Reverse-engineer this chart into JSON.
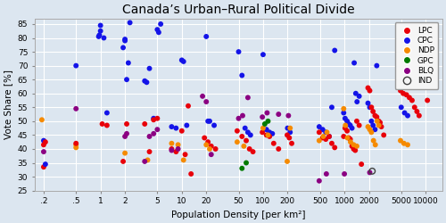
{
  "title": "Canada’s Urban–Rural Political Divide",
  "xlabel": "Population Density [per km²]",
  "ylabel": "Vote Share [%]",
  "ylim": [
    25,
    87
  ],
  "yticks": [
    25,
    30,
    35,
    40,
    45,
    50,
    55,
    60,
    65,
    70,
    75,
    80,
    85
  ],
  "xtick_labels": [
    ".2",
    ".5",
    "1",
    "2",
    "5",
    "10",
    "20",
    "50",
    "100",
    "200",
    "500",
    "1000",
    "2000",
    "5000",
    "10000"
  ],
  "xtick_values": [
    0.2,
    0.5,
    1,
    2,
    5,
    10,
    20,
    50,
    100,
    200,
    500,
    1000,
    2000,
    5000,
    10000
  ],
  "background_color": "#dce6f0",
  "plot_bg_color": "#dce6f0",
  "grid_color": "#ffffff",
  "parties": {
    "LPC": {
      "color": "#e8000a",
      "filled": true
    },
    "CPC": {
      "color": "#1414e8",
      "filled": true
    },
    "NDP": {
      "color": "#f58a00",
      "filled": true
    },
    "GPC": {
      "color": "#007a00",
      "filled": true
    },
    "BLQ": {
      "color": "#8b0082",
      "filled": true
    },
    "IND": {
      "color": "#404040",
      "filled": false
    }
  },
  "party_order": [
    "LPC",
    "CPC",
    "NDP",
    "GPC",
    "BLQ",
    "IND"
  ],
  "dot_size": 18,
  "data": [
    {
      "party": "NDP",
      "density": 0.19,
      "vote": 50.5
    },
    {
      "party": "CPC",
      "density": 0.2,
      "vote": 43.0
    },
    {
      "party": "LPC",
      "density": 0.2,
      "vote": 33.5
    },
    {
      "party": "LPC",
      "density": 0.2,
      "vote": 41.5
    },
    {
      "party": "BLQ",
      "density": 0.2,
      "vote": 39.0
    },
    {
      "party": "LPC",
      "density": 0.21,
      "vote": 42.5
    },
    {
      "party": "CPC",
      "density": 0.21,
      "vote": 34.5
    },
    {
      "party": "CPC",
      "density": 0.5,
      "vote": 70.0
    },
    {
      "party": "NDP",
      "density": 0.5,
      "vote": 40.5
    },
    {
      "party": "NDP",
      "density": 0.5,
      "vote": 41.5
    },
    {
      "party": "LPC",
      "density": 0.5,
      "vote": 42.0
    },
    {
      "party": "BLQ",
      "density": 0.5,
      "vote": 54.5
    },
    {
      "party": "CPC",
      "density": 0.95,
      "vote": 80.5
    },
    {
      "party": "CPC",
      "density": 0.97,
      "vote": 81.0
    },
    {
      "party": "CPC",
      "density": 1.0,
      "vote": 82.5
    },
    {
      "party": "CPC",
      "density": 1.0,
      "vote": 84.5
    },
    {
      "party": "CPC",
      "density": 1.1,
      "vote": 80.0
    },
    {
      "party": "CPC",
      "density": 1.2,
      "vote": 53.0
    },
    {
      "party": "LPC",
      "density": 1.05,
      "vote": 49.0
    },
    {
      "party": "LPC",
      "density": 1.2,
      "vote": 48.5
    },
    {
      "party": "CPC",
      "density": 1.9,
      "vote": 76.5
    },
    {
      "party": "CPC",
      "density": 2.0,
      "vote": 79.0
    },
    {
      "party": "CPC",
      "density": 2.0,
      "vote": 79.5
    },
    {
      "party": "CPC",
      "density": 2.1,
      "vote": 65.0
    },
    {
      "party": "CPC",
      "density": 2.2,
      "vote": 71.0
    },
    {
      "party": "CPC",
      "density": 2.3,
      "vote": 85.5
    },
    {
      "party": "LPC",
      "density": 1.9,
      "vote": 35.5
    },
    {
      "party": "LPC",
      "density": 2.1,
      "vote": 49.0
    },
    {
      "party": "NDP",
      "density": 2.0,
      "vote": 38.5
    },
    {
      "party": "BLQ",
      "density": 2.0,
      "vote": 44.5
    },
    {
      "party": "BLQ",
      "density": 2.1,
      "vote": 45.5
    },
    {
      "party": "CPC",
      "density": 3.5,
      "vote": 64.5
    },
    {
      "party": "CPC",
      "density": 3.7,
      "vote": 64.0
    },
    {
      "party": "CPC",
      "density": 4.0,
      "vote": 69.0
    },
    {
      "party": "CPC",
      "density": 4.5,
      "vote": 51.0
    },
    {
      "party": "CPC",
      "density": 5.0,
      "vote": 83.0
    },
    {
      "party": "CPC",
      "density": 5.2,
      "vote": 82.0
    },
    {
      "party": "CPC",
      "density": 5.5,
      "vote": 85.0
    },
    {
      "party": "LPC",
      "density": 3.5,
      "vote": 49.0
    },
    {
      "party": "LPC",
      "density": 4.0,
      "vote": 39.0
    },
    {
      "party": "LPC",
      "density": 4.5,
      "vote": 50.5
    },
    {
      "party": "LPC",
      "density": 5.0,
      "vote": 51.0
    },
    {
      "party": "NDP",
      "density": 3.8,
      "vote": 36.0
    },
    {
      "party": "BLQ",
      "density": 3.5,
      "vote": 35.5
    },
    {
      "party": "BLQ",
      "density": 4.0,
      "vote": 44.5
    },
    {
      "party": "BLQ",
      "density": 4.5,
      "vote": 45.5
    },
    {
      "party": "BLQ",
      "density": 5.0,
      "vote": 47.0
    },
    {
      "party": "CPC",
      "density": 7.5,
      "vote": 48.0
    },
    {
      "party": "CPC",
      "density": 8.5,
      "vote": 47.5
    },
    {
      "party": "CPC",
      "density": 10.0,
      "vote": 72.0
    },
    {
      "party": "CPC",
      "density": 10.5,
      "vote": 71.5
    },
    {
      "party": "CPC",
      "density": 11.5,
      "vote": 48.5
    },
    {
      "party": "LPC",
      "density": 7.5,
      "vote": 40.0
    },
    {
      "party": "LPC",
      "density": 8.5,
      "vote": 39.0
    },
    {
      "party": "LPC",
      "density": 10.0,
      "vote": 46.5
    },
    {
      "party": "LPC",
      "density": 11.0,
      "vote": 38.0
    },
    {
      "party": "LPC",
      "density": 12.0,
      "vote": 55.5
    },
    {
      "party": "LPC",
      "density": 13.0,
      "vote": 31.0
    },
    {
      "party": "NDP",
      "density": 7.5,
      "vote": 42.0
    },
    {
      "party": "NDP",
      "density": 9.0,
      "vote": 41.5
    },
    {
      "party": "NDP",
      "density": 10.5,
      "vote": 36.0
    },
    {
      "party": "BLQ",
      "density": 7.5,
      "vote": 39.5
    },
    {
      "party": "BLQ",
      "density": 9.0,
      "vote": 40.0
    },
    {
      "party": "CPC",
      "density": 20.0,
      "vote": 80.5
    },
    {
      "party": "CPC",
      "density": 21.0,
      "vote": 50.0
    },
    {
      "party": "CPC",
      "density": 22.0,
      "vote": 50.0
    },
    {
      "party": "CPC",
      "density": 25.0,
      "vote": 48.5
    },
    {
      "party": "LPC",
      "density": 19.0,
      "vote": 44.0
    },
    {
      "party": "LPC",
      "density": 21.0,
      "vote": 42.5
    },
    {
      "party": "LPC",
      "density": 23.0,
      "vote": 41.0
    },
    {
      "party": "LPC",
      "density": 26.0,
      "vote": 40.0
    },
    {
      "party": "NDP",
      "density": 20.0,
      "vote": 41.5
    },
    {
      "party": "NDP",
      "density": 22.0,
      "vote": 40.0
    },
    {
      "party": "BLQ",
      "density": 18.0,
      "vote": 59.0
    },
    {
      "party": "BLQ",
      "density": 20.0,
      "vote": 57.0
    },
    {
      "party": "BLQ",
      "density": 23.0,
      "vote": 38.0
    },
    {
      "party": "CPC",
      "density": 50.0,
      "vote": 75.0
    },
    {
      "party": "CPC",
      "density": 55.0,
      "vote": 66.5
    },
    {
      "party": "CPC",
      "density": 60.0,
      "vote": 47.5
    },
    {
      "party": "CPC",
      "density": 65.0,
      "vote": 46.0
    },
    {
      "party": "CPC",
      "density": 70.0,
      "vote": 45.0
    },
    {
      "party": "LPC",
      "density": 48.0,
      "vote": 46.5
    },
    {
      "party": "LPC",
      "density": 55.0,
      "vote": 44.5
    },
    {
      "party": "LPC",
      "density": 62.0,
      "vote": 43.0
    },
    {
      "party": "LPC",
      "density": 68.0,
      "vote": 40.0
    },
    {
      "party": "LPC",
      "density": 75.0,
      "vote": 39.0
    },
    {
      "party": "NDP",
      "density": 48.0,
      "vote": 42.5
    },
    {
      "party": "NDP",
      "density": 58.0,
      "vote": 41.0
    },
    {
      "party": "GPC",
      "density": 55.0,
      "vote": 33.0
    },
    {
      "party": "GPC",
      "density": 62.0,
      "vote": 35.0
    },
    {
      "party": "BLQ",
      "density": 50.0,
      "vote": 51.0
    },
    {
      "party": "BLQ",
      "density": 56.0,
      "vote": 52.0
    },
    {
      "party": "BLQ",
      "density": 65.0,
      "vote": 58.5
    },
    {
      "party": "CPC",
      "density": 100.0,
      "vote": 74.0
    },
    {
      "party": "CPC",
      "density": 110.0,
      "vote": 47.0
    },
    {
      "party": "CPC",
      "density": 120.0,
      "vote": 46.0
    },
    {
      "party": "CPC",
      "density": 130.0,
      "vote": 45.5
    },
    {
      "party": "LPC",
      "density": 98.0,
      "vote": 46.0
    },
    {
      "party": "LPC",
      "density": 110.0,
      "vote": 45.0
    },
    {
      "party": "LPC",
      "density": 120.0,
      "vote": 44.5
    },
    {
      "party": "LPC",
      "density": 135.0,
      "vote": 42.0
    },
    {
      "party": "LPC",
      "density": 155.0,
      "vote": 40.0
    },
    {
      "party": "NDP",
      "density": 100.0,
      "vote": 47.5
    },
    {
      "party": "NDP",
      "density": 115.0,
      "vote": 45.0
    },
    {
      "party": "GPC",
      "density": 105.0,
      "vote": 49.0
    },
    {
      "party": "GPC",
      "density": 115.0,
      "vote": 50.0
    },
    {
      "party": "BLQ",
      "density": 98.0,
      "vote": 51.5
    },
    {
      "party": "BLQ",
      "density": 112.0,
      "vote": 53.0
    },
    {
      "party": "BLQ",
      "density": 155.0,
      "vote": 52.5
    },
    {
      "party": "CPC",
      "density": 200.0,
      "vote": 47.5
    },
    {
      "party": "CPC",
      "density": 215.0,
      "vote": 46.0
    },
    {
      "party": "LPC",
      "density": 198.0,
      "vote": 45.0
    },
    {
      "party": "LPC",
      "density": 210.0,
      "vote": 44.0
    },
    {
      "party": "LPC",
      "density": 225.0,
      "vote": 42.0
    },
    {
      "party": "NDP",
      "density": 198.0,
      "vote": 35.5
    },
    {
      "party": "NDP",
      "density": 215.0,
      "vote": 47.5
    },
    {
      "party": "BLQ",
      "density": 205.0,
      "vote": 52.0
    },
    {
      "party": "CPC",
      "density": 490.0,
      "vote": 48.0
    },
    {
      "party": "CPC",
      "density": 540.0,
      "vote": 47.0
    },
    {
      "party": "CPC",
      "density": 590.0,
      "vote": 46.0
    },
    {
      "party": "CPC",
      "density": 650.0,
      "vote": 44.5
    },
    {
      "party": "CPC",
      "density": 700.0,
      "vote": 55.0
    },
    {
      "party": "CPC",
      "density": 760.0,
      "vote": 75.5
    },
    {
      "party": "LPC",
      "density": 490.0,
      "vote": 46.0
    },
    {
      "party": "LPC",
      "density": 540.0,
      "vote": 44.0
    },
    {
      "party": "LPC",
      "density": 590.0,
      "vote": 43.5
    },
    {
      "party": "LPC",
      "density": 650.0,
      "vote": 44.5
    },
    {
      "party": "LPC",
      "density": 700.0,
      "vote": 42.0
    },
    {
      "party": "LPC",
      "density": 760.0,
      "vote": 40.5
    },
    {
      "party": "NDP",
      "density": 490.0,
      "vote": 43.0
    },
    {
      "party": "NDP",
      "density": 550.0,
      "vote": 44.5
    },
    {
      "party": "NDP",
      "density": 610.0,
      "vote": 46.0
    },
    {
      "party": "BLQ",
      "density": 490.0,
      "vote": 28.5
    },
    {
      "party": "BLQ",
      "density": 600.0,
      "vote": 31.0
    },
    {
      "party": "CPC",
      "density": 980.0,
      "vote": 53.0
    },
    {
      "party": "CPC",
      "density": 1020.0,
      "vote": 51.0
    },
    {
      "party": "CPC",
      "density": 1080.0,
      "vote": 50.0
    },
    {
      "party": "CPC",
      "density": 1130.0,
      "vote": 49.0
    },
    {
      "party": "CPC",
      "density": 1180.0,
      "vote": 48.5
    },
    {
      "party": "CPC",
      "density": 1240.0,
      "vote": 47.5
    },
    {
      "party": "CPC",
      "density": 1320.0,
      "vote": 71.0
    },
    {
      "party": "CPC",
      "density": 1380.0,
      "vote": 60.0
    },
    {
      "party": "CPC",
      "density": 1430.0,
      "vote": 57.0
    },
    {
      "party": "CPC",
      "density": 1520.0,
      "vote": 59.0
    },
    {
      "party": "LPC",
      "density": 980.0,
      "vote": 44.5
    },
    {
      "party": "LPC",
      "density": 1020.0,
      "vote": 47.5
    },
    {
      "party": "LPC",
      "density": 1080.0,
      "vote": 46.5
    },
    {
      "party": "LPC",
      "density": 1130.0,
      "vote": 44.0
    },
    {
      "party": "LPC",
      "density": 1180.0,
      "vote": 43.5
    },
    {
      "party": "LPC",
      "density": 1240.0,
      "vote": 41.0
    },
    {
      "party": "LPC",
      "density": 1300.0,
      "vote": 40.0
    },
    {
      "party": "LPC",
      "density": 1360.0,
      "vote": 39.5
    },
    {
      "party": "LPC",
      "density": 1420.0,
      "vote": 50.0
    },
    {
      "party": "LPC",
      "density": 1520.0,
      "vote": 48.5
    },
    {
      "party": "NDP",
      "density": 980.0,
      "vote": 54.5
    },
    {
      "party": "NDP",
      "density": 1030.0,
      "vote": 48.5
    },
    {
      "party": "NDP",
      "density": 1090.0,
      "vote": 44.0
    },
    {
      "party": "NDP",
      "density": 1190.0,
      "vote": 42.5
    },
    {
      "party": "NDP",
      "density": 1300.0,
      "vote": 41.5
    },
    {
      "party": "NDP",
      "density": 1420.0,
      "vote": 41.0
    },
    {
      "party": "BLQ",
      "density": 1000.0,
      "vote": 31.0
    },
    {
      "party": "CPC",
      "density": 1950.0,
      "vote": 56.5
    },
    {
      "party": "CPC",
      "density": 2050.0,
      "vote": 55.0
    },
    {
      "party": "CPC",
      "density": 2150.0,
      "vote": 50.0
    },
    {
      "party": "CPC",
      "density": 2250.0,
      "vote": 48.5
    },
    {
      "party": "CPC",
      "density": 2380.0,
      "vote": 47.0
    },
    {
      "party": "CPC",
      "density": 2500.0,
      "vote": 70.0
    },
    {
      "party": "LPC",
      "density": 1950.0,
      "vote": 62.0
    },
    {
      "party": "LPC",
      "density": 2050.0,
      "vote": 61.0
    },
    {
      "party": "LPC",
      "density": 2150.0,
      "vote": 55.0
    },
    {
      "party": "LPC",
      "density": 2250.0,
      "vote": 53.5
    },
    {
      "party": "LPC",
      "density": 2380.0,
      "vote": 52.0
    },
    {
      "party": "LPC",
      "density": 2500.0,
      "vote": 51.5
    },
    {
      "party": "LPC",
      "density": 2650.0,
      "vote": 50.0
    },
    {
      "party": "LPC",
      "density": 2750.0,
      "vote": 49.5
    },
    {
      "party": "LPC",
      "density": 2850.0,
      "vote": 48.0
    },
    {
      "party": "LPC",
      "density": 3050.0,
      "vote": 45.0
    },
    {
      "party": "NDP",
      "density": 1950.0,
      "vote": 48.0
    },
    {
      "party": "NDP",
      "density": 2050.0,
      "vote": 47.0
    },
    {
      "party": "NDP",
      "density": 2150.0,
      "vote": 46.0
    },
    {
      "party": "NDP",
      "density": 2280.0,
      "vote": 43.0
    },
    {
      "party": "NDP",
      "density": 2400.0,
      "vote": 41.5
    },
    {
      "party": "NDP",
      "density": 2530.0,
      "vote": 50.0
    },
    {
      "party": "NDP",
      "density": 2650.0,
      "vote": 48.5
    },
    {
      "party": "BLQ",
      "density": 2050.0,
      "vote": 31.5
    },
    {
      "party": "CPC",
      "density": 5000.0,
      "vote": 55.0
    },
    {
      "party": "CPC",
      "density": 5500.0,
      "vote": 53.0
    },
    {
      "party": "CPC",
      "density": 6000.0,
      "vote": 52.0
    },
    {
      "party": "LPC",
      "density": 4900.0,
      "vote": 61.0
    },
    {
      "party": "LPC",
      "density": 5300.0,
      "vote": 60.0
    },
    {
      "party": "LPC",
      "density": 5800.0,
      "vote": 59.5
    },
    {
      "party": "LPC",
      "density": 6300.0,
      "vote": 58.5
    },
    {
      "party": "LPC",
      "density": 6800.0,
      "vote": 57.5
    },
    {
      "party": "LPC",
      "density": 7300.0,
      "vote": 55.0
    },
    {
      "party": "LPC",
      "density": 7800.0,
      "vote": 53.5
    },
    {
      "party": "LPC",
      "density": 8300.0,
      "vote": 52.0
    },
    {
      "party": "NDP",
      "density": 4900.0,
      "vote": 43.0
    },
    {
      "party": "NDP",
      "density": 5400.0,
      "vote": 42.0
    },
    {
      "party": "NDP",
      "density": 6000.0,
      "vote": 41.5
    },
    {
      "party": "LPC",
      "density": 10500.0,
      "vote": 57.5
    },
    {
      "party": "IND",
      "density": 2200.0,
      "vote": 32.0
    },
    {
      "party": "LPC",
      "density": 1620.0,
      "vote": 34.5
    }
  ]
}
